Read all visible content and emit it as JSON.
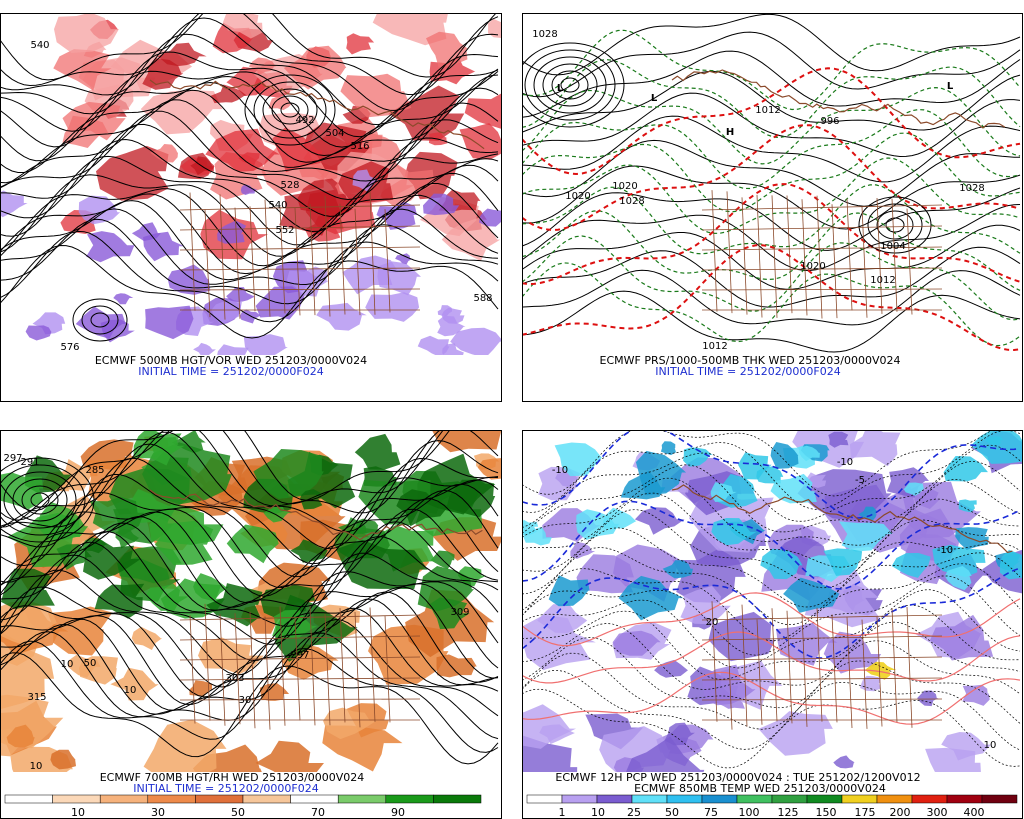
{
  "panels": [
    {
      "caption": "ECMWF 500MB HGT/VOR WED 251203/0000V024",
      "initial_time": "INITIAL TIME = 251202/0000F024",
      "contour_labels": [
        "540",
        "492",
        "504",
        "516",
        "528",
        "540",
        "552",
        "576",
        "588"
      ]
    },
    {
      "caption": "ECMWF PRS/1000-500MB THK WED 251203/0000V024",
      "initial_time": "INITIAL TIME = 251202/0000F024",
      "contour_labels": [
        "1028",
        "1020",
        "1028",
        "1020",
        "996",
        "1012",
        "1028",
        "1004",
        "1020",
        "1012",
        "1012",
        "L",
        "L",
        "L",
        "H"
      ]
    },
    {
      "caption": "ECMWF 700MB HGT/RH WED 251203/0000V024",
      "initial_time": "INITIAL TIME = 251202/0000F024",
      "contour_labels": [
        "297",
        "291",
        "285",
        "315",
        "303",
        "297",
        "309",
        "10",
        "50",
        "10",
        "30",
        "10"
      ],
      "colorbar": [
        "10",
        "30",
        "50",
        "70",
        "90"
      ]
    },
    {
      "caption": "ECMWF 12H PCP WED 251203/0000V024 : TUE 251202/1200V012",
      "initial_time": "ECMWF 850MB TEMP WED 251203/0000V024",
      "contour_labels": [
        "-10",
        "-10",
        "-5",
        "-10",
        "20",
        "10"
      ],
      "colorbar": [
        "1",
        "10",
        "25",
        "50",
        "75",
        "100",
        "125",
        "150",
        "175",
        "200",
        "300",
        "400"
      ]
    }
  ]
}
